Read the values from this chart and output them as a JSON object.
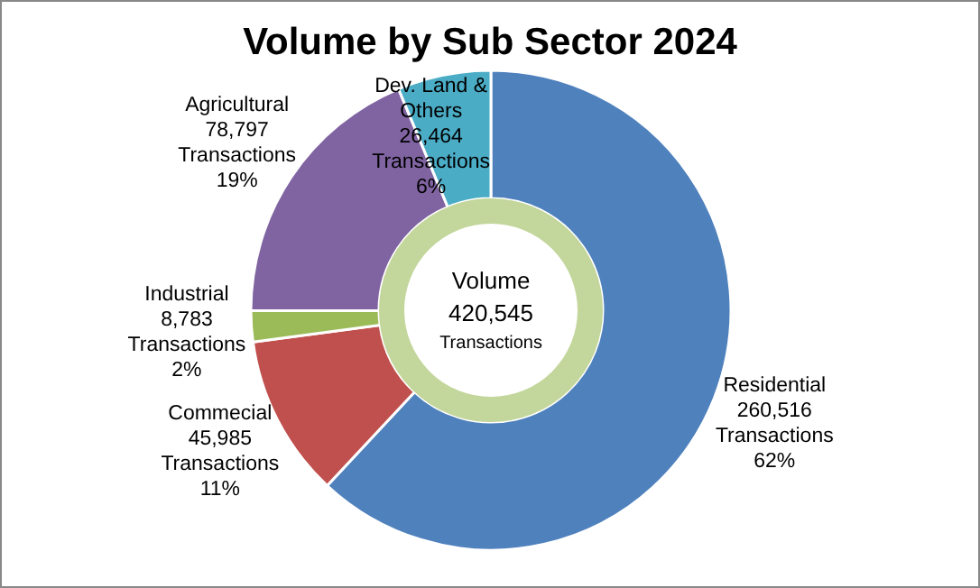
{
  "chart_data": {
    "type": "donut",
    "title": "Volume by Sub Sector 2024",
    "categories": [
      "Residential",
      "Commecial",
      "Industrial",
      "Agricultural",
      "Dev. Land & Others"
    ],
    "values": [
      260516,
      45985,
      8783,
      78797,
      26464
    ],
    "colors": [
      "#4f81bd",
      "#c0504d",
      "#9bbb59",
      "#8064a2",
      "#4bacc6"
    ],
    "value_labels": [
      "260,516\nTransactions\n62%",
      "45,985\nTransactions\n11%",
      "8,783\nTransactions\n2%",
      "78,797\nTransactions\n19%",
      "26,464\nTransactions\n6%"
    ],
    "annotations": [
      "Volume",
      "420,545",
      "Transactions"
    ],
    "legend": false
  }
}
